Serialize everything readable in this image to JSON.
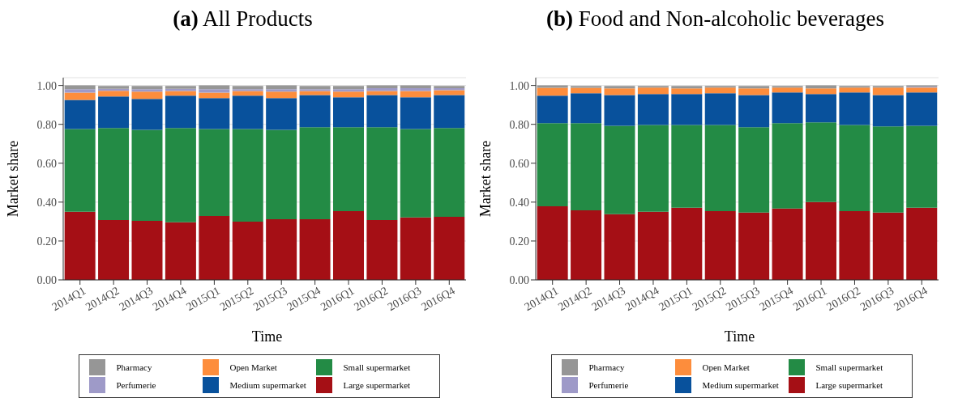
{
  "chart_data": [
    {
      "type": "bar",
      "title": "(a) All Products",
      "xlabel": "Time",
      "ylabel": "Market share",
      "stacked": true,
      "categories": [
        "2014Q1",
        "2014Q2",
        "2014Q3",
        "2014Q4",
        "2015Q1",
        "2015Q2",
        "2015Q3",
        "2015Q4",
        "2016Q1",
        "2016Q2",
        "2016Q3",
        "2016Q4"
      ],
      "series": [
        {
          "name": "Large supermarket",
          "color": "#a50f15",
          "values": [
            0.35,
            0.308,
            0.304,
            0.296,
            0.329,
            0.3,
            0.312,
            0.312,
            0.354,
            0.308,
            0.321,
            0.325
          ]
        },
        {
          "name": "Small supermarket",
          "color": "#238b45",
          "values": [
            0.426,
            0.473,
            0.468,
            0.485,
            0.447,
            0.476,
            0.46,
            0.473,
            0.431,
            0.477,
            0.455,
            0.456
          ]
        },
        {
          "name": "Medium supermarket",
          "color": "#08519c",
          "values": [
            0.15,
            0.162,
            0.159,
            0.166,
            0.159,
            0.171,
            0.163,
            0.166,
            0.154,
            0.166,
            0.163,
            0.17
          ]
        },
        {
          "name": "Open Market",
          "color": "#fd8d3c",
          "values": [
            0.037,
            0.029,
            0.037,
            0.024,
            0.028,
            0.024,
            0.033,
            0.02,
            0.029,
            0.02,
            0.032,
            0.025
          ]
        },
        {
          "name": "Perfumerie",
          "color": "#9e9ac8",
          "values": [
            0.018,
            0.011,
            0.013,
            0.012,
            0.018,
            0.01,
            0.013,
            0.01,
            0.013,
            0.015,
            0.015,
            0.01
          ]
        },
        {
          "name": "Pharmacy",
          "color": "#969696",
          "values": [
            0.019,
            0.014,
            0.016,
            0.014,
            0.019,
            0.016,
            0.019,
            0.016,
            0.016,
            0.014,
            0.014,
            0.011
          ]
        }
      ],
      "ylim": [
        0,
        1.04
      ],
      "yticks": [
        {
          "value": 0,
          "label": "0.00"
        },
        {
          "value": 0.2,
          "label": "0.20"
        },
        {
          "value": 0.4,
          "label": "0.40"
        },
        {
          "value": 0.6,
          "label": "0.60"
        },
        {
          "value": 0.8,
          "label": "0.80"
        },
        {
          "value": 1,
          "label": "1.00"
        }
      ],
      "grid": "y",
      "legend": "bottom"
    },
    {
      "type": "bar",
      "title": "(b) Food and Non-alcoholic beverages",
      "xlabel": "Time",
      "ylabel": "Market share",
      "stacked": true,
      "categories": [
        "2014Q1",
        "2014Q2",
        "2014Q3",
        "2014Q4",
        "2015Q1",
        "2015Q2",
        "2015Q3",
        "2015Q4",
        "2016Q1",
        "2016Q2",
        "2016Q3",
        "2016Q4"
      ],
      "series": [
        {
          "name": "Large supermarket",
          "color": "#a50f15",
          "values": [
            0.379,
            0.358,
            0.338,
            0.35,
            0.371,
            0.354,
            0.346,
            0.367,
            0.4,
            0.354,
            0.346,
            0.371
          ]
        },
        {
          "name": "Small supermarket",
          "color": "#238b45",
          "values": [
            0.427,
            0.448,
            0.455,
            0.447,
            0.426,
            0.443,
            0.439,
            0.439,
            0.41,
            0.443,
            0.443,
            0.422
          ]
        },
        {
          "name": "Medium supermarket",
          "color": "#08519c",
          "values": [
            0.141,
            0.154,
            0.158,
            0.159,
            0.159,
            0.163,
            0.166,
            0.158,
            0.146,
            0.167,
            0.162,
            0.171
          ]
        },
        {
          "name": "Open Market",
          "color": "#fd8d3c",
          "values": [
            0.041,
            0.028,
            0.034,
            0.033,
            0.029,
            0.029,
            0.034,
            0.025,
            0.029,
            0.025,
            0.038,
            0.025
          ]
        },
        {
          "name": "Perfumerie",
          "color": "#9e9ac8",
          "values": [
            0,
            0,
            0,
            0,
            0,
            0,
            0,
            0,
            0,
            0,
            0,
            0.004
          ]
        },
        {
          "name": "Pharmacy",
          "color": "#969696",
          "values": [
            0.012,
            0.009,
            0.012,
            0.008,
            0.012,
            0.008,
            0.012,
            0.008,
            0.015,
            0.008,
            0.008,
            0.007
          ]
        }
      ],
      "ylim": [
        0,
        1.04
      ],
      "yticks": [
        {
          "value": 0,
          "label": "0.00"
        },
        {
          "value": 0.2,
          "label": "0.20"
        },
        {
          "value": 0.4,
          "label": "0.40"
        },
        {
          "value": 0.6,
          "label": "0.60"
        },
        {
          "value": 0.8,
          "label": "0.80"
        },
        {
          "value": 1,
          "label": "1.00"
        }
      ],
      "grid": "y",
      "legend": "bottom"
    }
  ]
}
